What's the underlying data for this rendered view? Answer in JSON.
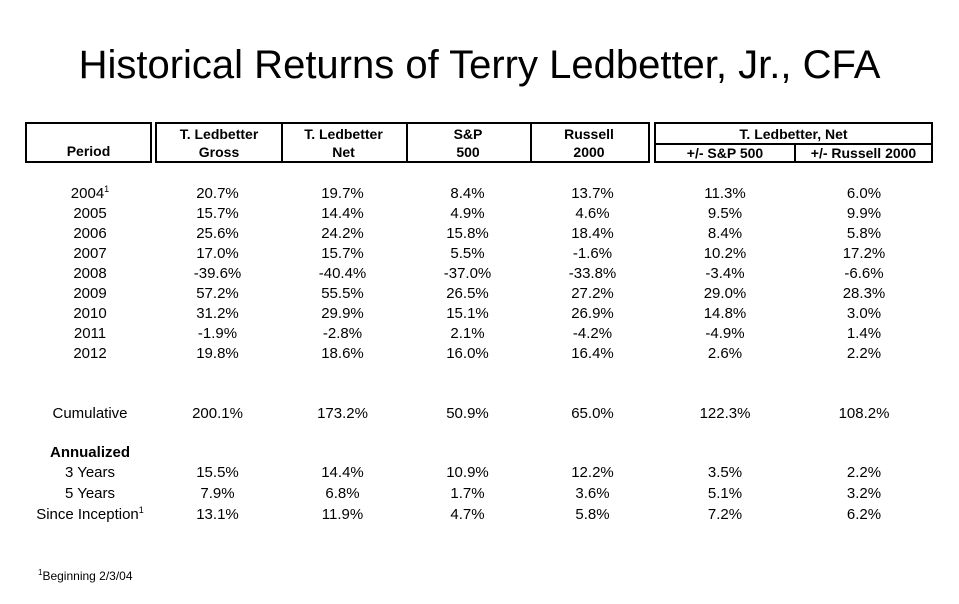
{
  "title": "Historical Returns of Terry Ledbetter, Jr., CFA",
  "header": {
    "period": "Period",
    "gross": [
      "T. Ledbetter",
      "Gross"
    ],
    "net": [
      "T. Ledbetter",
      "Net"
    ],
    "sp": [
      "S&P",
      "500"
    ],
    "russell": [
      "Russell",
      "2000"
    ],
    "group": "T. Ledbetter, Net",
    "vs_sp": "+/- S&P 500",
    "vs_russell": "+/- Russell 2000"
  },
  "footnote_marker": "1",
  "years": [
    {
      "period": "2004",
      "sup": "1",
      "values": [
        "20.7%",
        "19.7%",
        "8.4%",
        "13.7%",
        "11.3%",
        "6.0%"
      ]
    },
    {
      "period": "2005",
      "values": [
        "15.7%",
        "14.4%",
        "4.9%",
        "4.6%",
        "9.5%",
        "9.9%"
      ]
    },
    {
      "period": "2006",
      "values": [
        "25.6%",
        "24.2%",
        "15.8%",
        "18.4%",
        "8.4%",
        "5.8%"
      ]
    },
    {
      "period": "2007",
      "values": [
        "17.0%",
        "15.7%",
        "5.5%",
        "-1.6%",
        "10.2%",
        "17.2%"
      ]
    },
    {
      "period": "2008",
      "values": [
        "-39.6%",
        "-40.4%",
        "-37.0%",
        "-33.8%",
        "-3.4%",
        "-6.6%"
      ]
    },
    {
      "period": "2009",
      "values": [
        "57.2%",
        "55.5%",
        "26.5%",
        "27.2%",
        "29.0%",
        "28.3%"
      ]
    },
    {
      "period": "2010",
      "values": [
        "31.2%",
        "29.9%",
        "15.1%",
        "26.9%",
        "14.8%",
        "3.0%"
      ]
    },
    {
      "period": "2011",
      "values": [
        "-1.9%",
        "-2.8%",
        "2.1%",
        "-4.2%",
        "-4.9%",
        "1.4%"
      ]
    },
    {
      "period": "2012",
      "values": [
        "19.8%",
        "18.6%",
        "16.0%",
        "16.4%",
        "2.6%",
        "2.2%"
      ]
    }
  ],
  "cumulative": {
    "period": "Cumulative",
    "values": [
      "200.1%",
      "173.2%",
      "50.9%",
      "65.0%",
      "122.3%",
      "108.2%"
    ]
  },
  "annualized_label": "Annualized",
  "annualized": [
    {
      "period": "3 Years",
      "values": [
        "15.5%",
        "14.4%",
        "10.9%",
        "12.2%",
        "3.5%",
        "2.2%"
      ]
    },
    {
      "period": "5 Years",
      "values": [
        "7.9%",
        "6.8%",
        "1.7%",
        "3.6%",
        "5.1%",
        "3.2%"
      ]
    },
    {
      "period": "Since Inception",
      "sup": "1",
      "values": [
        "13.1%",
        "11.9%",
        "4.7%",
        "5.8%",
        "7.2%",
        "6.2%"
      ]
    }
  ],
  "footnote": "Beginning 2/3/04"
}
